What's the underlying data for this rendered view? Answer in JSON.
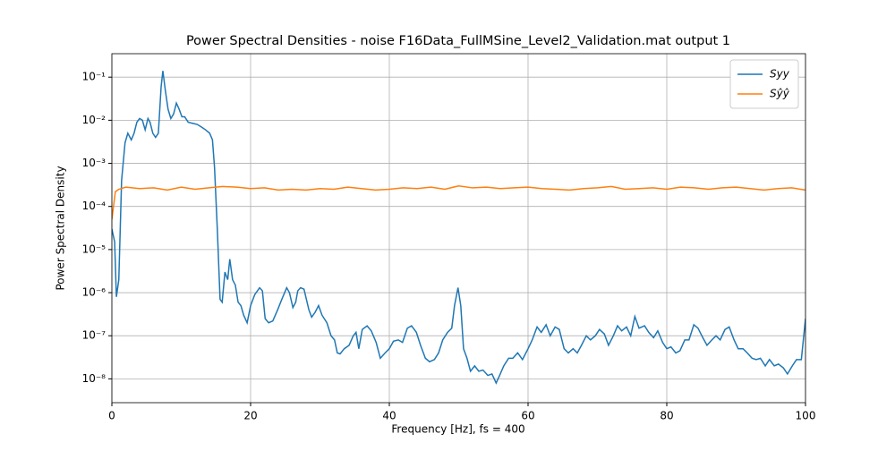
{
  "chart_data": {
    "type": "line",
    "title": "Power Spectral Densities - noise F16Data_FullMSine_Level2_Validation.mat output 1",
    "x_label": "Frequency [Hz], fs = 400",
    "y_label": "Power Spectral Density",
    "xlim": [
      0,
      100
    ],
    "xticks": [
      0,
      20,
      40,
      60,
      80,
      100
    ],
    "ylim": [
      2.8e-09,
      0.35
    ],
    "log_y": true,
    "grid": true,
    "legend": "upper right",
    "yticks": [
      {
        "value": 1e-08,
        "label": "10⁻⁸"
      },
      {
        "value": 1e-07,
        "label": "10⁻⁷"
      },
      {
        "value": 1e-06,
        "label": "10⁻⁶"
      },
      {
        "value": 1e-05,
        "label": "10⁻⁵"
      },
      {
        "value": 0.0001,
        "label": "10⁻⁴"
      },
      {
        "value": 0.001,
        "label": "10⁻³"
      },
      {
        "value": 0.01,
        "label": "10⁻²"
      },
      {
        "value": 0.1,
        "label": "10⁻¹"
      }
    ],
    "series": [
      {
        "name": "Syy",
        "color": "#1f77b4",
        "x": [
          0,
          0.4,
          0.65,
          1.0,
          1.4,
          1.9,
          2.3,
          2.8,
          3.2,
          3.6,
          4.0,
          4.4,
          4.8,
          5.2,
          5.5,
          5.9,
          6.3,
          6.7,
          7.1,
          7.35,
          7.7,
          8.1,
          8.5,
          8.9,
          9.3,
          9.7,
          10.1,
          10.5,
          11,
          11.6,
          12.3,
          12.9,
          13.5,
          14.1,
          14.5,
          14.8,
          15.2,
          15.6,
          15.9,
          16.3,
          16.7,
          17.0,
          17.4,
          17.8,
          18.2,
          18.6,
          19.0,
          19.5,
          20,
          20.6,
          21.3,
          21.7,
          22.1,
          22.6,
          23.2,
          23.9,
          24.5,
          25.2,
          25.6,
          26.1,
          26.5,
          26.8,
          27.2,
          27.7,
          28.4,
          28.8,
          29.3,
          29.8,
          30.3,
          31,
          31.6,
          32.1,
          32.5,
          32.9,
          33.5,
          34.2,
          34.8,
          35.2,
          35.6,
          36.1,
          36.8,
          37.4,
          38.1,
          38.7,
          39.4,
          40,
          40.6,
          41.3,
          41.9,
          42.6,
          43.2,
          43.9,
          44.5,
          45.2,
          45.8,
          46.5,
          47.1,
          47.7,
          48.4,
          49,
          49.4,
          49.9,
          50.3,
          50.7,
          51.2,
          51.7,
          52.3,
          52.9,
          53.5,
          54.2,
          54.8,
          55.4,
          55.9,
          56.5,
          57.2,
          57.8,
          58.5,
          59.2,
          60,
          60.6,
          61.3,
          61.9,
          62.6,
          63.2,
          63.9,
          64.5,
          65.2,
          65.8,
          66.5,
          67.1,
          67.7,
          68.4,
          69,
          69.7,
          70.3,
          71,
          71.6,
          72.3,
          72.9,
          73.5,
          74.2,
          74.8,
          75.4,
          76,
          76.8,
          77.4,
          78.1,
          78.7,
          79.4,
          80,
          80.6,
          81.3,
          81.9,
          82.6,
          83.2,
          83.9,
          84.5,
          85.2,
          85.8,
          86.5,
          87.1,
          87.7,
          88.4,
          89,
          89.7,
          90.3,
          91,
          91.6,
          92.3,
          92.9,
          93.5,
          94.2,
          94.8,
          95.5,
          96.1,
          96.8,
          97.4,
          98.1,
          98.7,
          99.4,
          100
        ],
        "values": [
          3e-05,
          1.5e-05,
          8e-07,
          2e-06,
          0.0004,
          0.003,
          0.005,
          0.0035,
          0.005,
          0.009,
          0.011,
          0.01,
          0.006,
          0.011,
          0.009,
          0.005,
          0.004,
          0.005,
          0.06,
          0.14,
          0.05,
          0.018,
          0.011,
          0.014,
          0.025,
          0.018,
          0.012,
          0.012,
          0.009,
          0.0085,
          0.008,
          0.007,
          0.006,
          0.005,
          0.0035,
          0.0008,
          3e-05,
          7e-07,
          6e-07,
          3e-06,
          2e-06,
          6e-06,
          2e-06,
          1.5e-06,
          6e-07,
          5e-07,
          3e-07,
          2e-07,
          5e-07,
          9e-07,
          1.3e-06,
          1.1e-06,
          2.5e-07,
          2e-07,
          2.2e-07,
          4e-07,
          7e-07,
          1.3e-06,
          1e-06,
          4.5e-07,
          6e-07,
          1.1e-06,
          1.3e-06,
          1.2e-06,
          4e-07,
          2.7e-07,
          3.5e-07,
          5e-07,
          3e-07,
          2e-07,
          1e-07,
          8e-08,
          4e-08,
          3.8e-08,
          5e-08,
          6e-08,
          1e-07,
          1.2e-07,
          5e-08,
          1.4e-07,
          1.7e-07,
          1.3e-07,
          7e-08,
          3e-08,
          4e-08,
          5e-08,
          7.5e-08,
          8e-08,
          7e-08,
          1.5e-07,
          1.7e-07,
          1.2e-07,
          6e-08,
          3e-08,
          2.5e-08,
          2.8e-08,
          4e-08,
          8e-08,
          1.2e-07,
          1.5e-07,
          5e-07,
          1.3e-06,
          5e-07,
          5e-08,
          3e-08,
          1.5e-08,
          2e-08,
          1.5e-08,
          1.6e-08,
          1.2e-08,
          1.3e-08,
          8e-09,
          1.2e-08,
          2e-08,
          3e-08,
          3e-08,
          4e-08,
          2.8e-08,
          5e-08,
          8e-08,
          1.6e-07,
          1.2e-07,
          1.8e-07,
          1e-07,
          1.6e-07,
          1.4e-07,
          5e-08,
          4e-08,
          5e-08,
          4e-08,
          6e-08,
          1e-07,
          8e-08,
          1e-07,
          1.4e-07,
          1.1e-07,
          6e-08,
          1e-07,
          1.7e-07,
          1.3e-07,
          1.6e-07,
          1e-07,
          2.8e-07,
          1.5e-07,
          1.7e-07,
          1.2e-07,
          9e-08,
          1.3e-07,
          7e-08,
          5e-08,
          5.5e-08,
          4e-08,
          4.5e-08,
          8e-08,
          8e-08,
          1.8e-07,
          1.5e-07,
          9e-08,
          6e-08,
          8e-08,
          1e-07,
          8e-08,
          1.4e-07,
          1.6e-07,
          8e-08,
          5e-08,
          5e-08,
          4e-08,
          3e-08,
          2.8e-08,
          3e-08,
          2e-08,
          2.8e-08,
          2e-08,
          2.2e-08,
          1.8e-08,
          1.3e-08,
          2e-08,
          2.8e-08,
          2.8e-08,
          2.5e-07
        ]
      },
      {
        "name": "Sŷŷ",
        "color": "#ff7f0e",
        "x": [
          0,
          0.5,
          1,
          2,
          4,
          6,
          8,
          10,
          12,
          14,
          16,
          18,
          20,
          22,
          24,
          26,
          28,
          30,
          32,
          34,
          36,
          38,
          40,
          42,
          44,
          46,
          48,
          50,
          52,
          54,
          56,
          58,
          60,
          62,
          64,
          66,
          68,
          70,
          72,
          74,
          76,
          78,
          80,
          82,
          84,
          86,
          88,
          90,
          92,
          94,
          96,
          98,
          100
        ],
        "values": [
          5e-05,
          0.00022,
          0.00025,
          0.00028,
          0.00026,
          0.00027,
          0.00024,
          0.00028,
          0.00025,
          0.00027,
          0.00029,
          0.00028,
          0.00026,
          0.00027,
          0.00024,
          0.00025,
          0.00024,
          0.00026,
          0.00025,
          0.00028,
          0.00026,
          0.00024,
          0.00025,
          0.00027,
          0.00026,
          0.00028,
          0.00025,
          0.0003,
          0.00027,
          0.00028,
          0.00026,
          0.00027,
          0.00028,
          0.00026,
          0.00025,
          0.00024,
          0.00026,
          0.00027,
          0.00029,
          0.00025,
          0.00026,
          0.00027,
          0.00025,
          0.00028,
          0.00027,
          0.00025,
          0.00027,
          0.00028,
          0.00026,
          0.00024,
          0.00026,
          0.00027,
          0.00024
        ]
      }
    ]
  }
}
